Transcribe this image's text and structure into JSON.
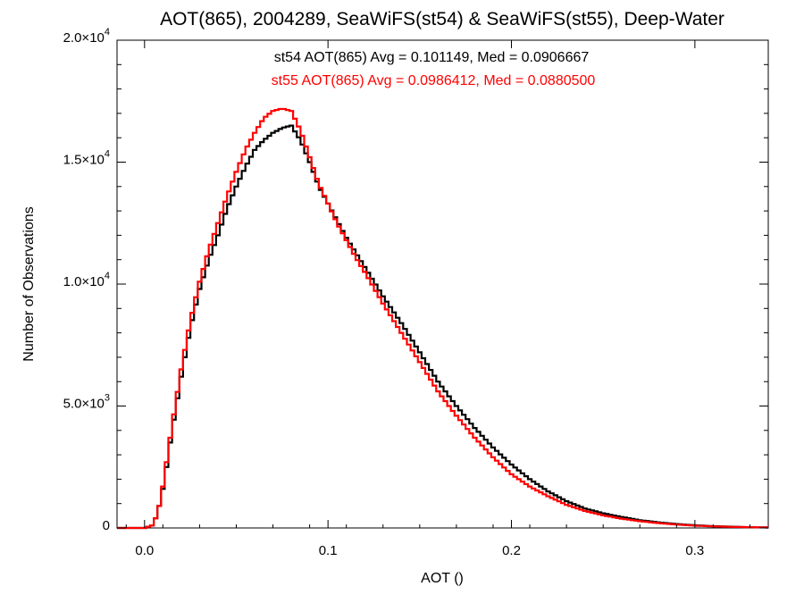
{
  "chart_data": {
    "type": "line",
    "style": "step-histogram",
    "title": "AOT(865), 2004289, SeaWiFS(st54) & SeaWiFS(st55), Deep-Water",
    "xlabel": "AOT ()",
    "ylabel": "Number of Observations",
    "xlim": [
      -0.015,
      0.34
    ],
    "ylim": [
      0,
      20000
    ],
    "x_ticks": [
      {
        "value": 0.0,
        "label": "0.0"
      },
      {
        "value": 0.1,
        "label": "0.1"
      },
      {
        "value": 0.2,
        "label": "0.2"
      },
      {
        "value": 0.3,
        "label": "0.3"
      }
    ],
    "y_ticks": [
      {
        "value": 0,
        "mant": "0",
        "exp": ""
      },
      {
        "value": 5000,
        "mant": "5.0×10",
        "exp": "3"
      },
      {
        "value": 10000,
        "mant": "1.0×10",
        "exp": "4"
      },
      {
        "value": 15000,
        "mant": "1.5×10",
        "exp": "4"
      },
      {
        "value": 20000,
        "mant": "2.0×10",
        "exp": "4"
      }
    ],
    "annotations": [
      {
        "text": "st54 AOT(865) Avg = 0.101149, Med = 0.0906667",
        "color": "#000000"
      },
      {
        "text": "st55 AOT(865) Avg = 0.0986412, Med = 0.0880500",
        "color": "#ff0000"
      }
    ],
    "series": [
      {
        "color": "#000000",
        "x": [
          -0.015,
          0.0,
          0.004,
          0.006,
          0.008,
          0.01,
          0.012,
          0.015,
          0.02,
          0.025,
          0.03,
          0.035,
          0.04,
          0.045,
          0.05,
          0.055,
          0.06,
          0.065,
          0.07,
          0.075,
          0.08,
          0.085,
          0.09,
          0.095,
          0.1,
          0.105,
          0.11,
          0.115,
          0.12,
          0.13,
          0.14,
          0.15,
          0.16,
          0.17,
          0.18,
          0.19,
          0.2,
          0.21,
          0.22,
          0.23,
          0.24,
          0.25,
          0.26,
          0.27,
          0.28,
          0.29,
          0.3,
          0.31,
          0.32,
          0.33,
          0.34
        ],
        "y": [
          0,
          0,
          100,
          400,
          900,
          1600,
          2500,
          4000,
          6200,
          8200,
          9800,
          11000,
          12000,
          13100,
          14000,
          14800,
          15500,
          15900,
          16200,
          16400,
          16500,
          15900,
          15000,
          14000,
          13300,
          12600,
          11900,
          11300,
          10700,
          9500,
          8400,
          7200,
          6000,
          5000,
          4100,
          3300,
          2600,
          2000,
          1500,
          1100,
          800,
          600,
          450,
          320,
          230,
          160,
          110,
          75,
          50,
          30,
          20
        ]
      },
      {
        "color": "#ff0000",
        "x": [
          -0.015,
          0.0,
          0.004,
          0.006,
          0.008,
          0.01,
          0.012,
          0.015,
          0.02,
          0.025,
          0.03,
          0.035,
          0.04,
          0.045,
          0.05,
          0.055,
          0.06,
          0.065,
          0.07,
          0.075,
          0.08,
          0.085,
          0.09,
          0.095,
          0.1,
          0.105,
          0.11,
          0.115,
          0.12,
          0.13,
          0.14,
          0.15,
          0.16,
          0.17,
          0.18,
          0.19,
          0.2,
          0.21,
          0.22,
          0.23,
          0.24,
          0.25,
          0.26,
          0.27,
          0.28,
          0.29,
          0.3,
          0.31,
          0.32,
          0.33,
          0.34
        ],
        "y": [
          0,
          0,
          100,
          400,
          900,
          1700,
          2700,
          4200,
          6500,
          8500,
          10100,
          11400,
          12500,
          13600,
          14600,
          15500,
          16200,
          16800,
          17100,
          17200,
          17100,
          16300,
          15200,
          14100,
          13300,
          12500,
          11800,
          11100,
          10500,
          9200,
          8000,
          6800,
          5600,
          4600,
          3700,
          2900,
          2200,
          1700,
          1300,
          950,
          700,
          520,
          380,
          280,
          200,
          140,
          95,
          65,
          45,
          30,
          20
        ]
      }
    ]
  }
}
